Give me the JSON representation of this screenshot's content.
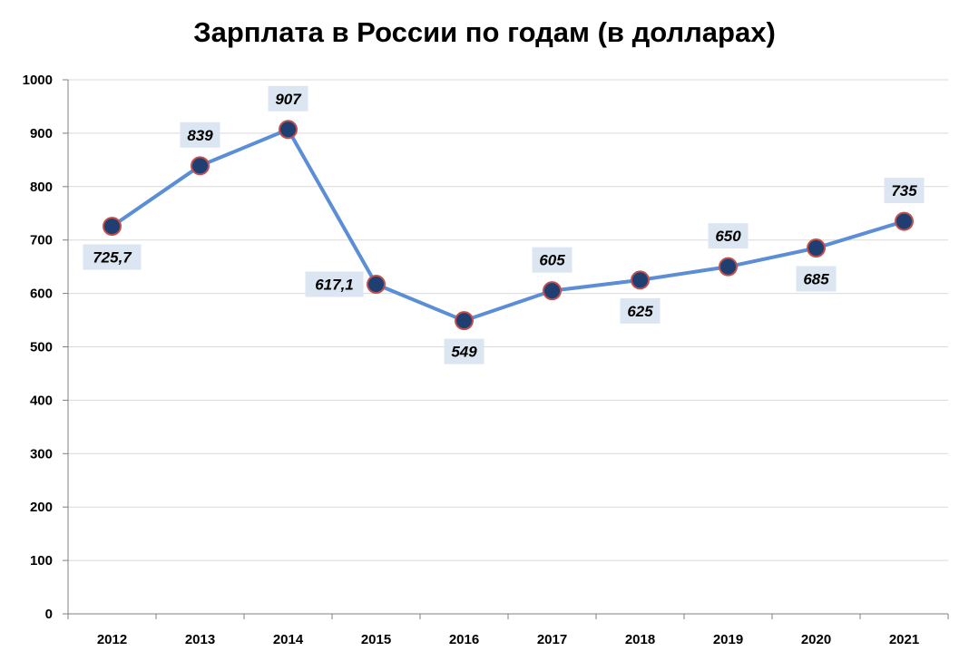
{
  "chart_data": {
    "type": "line",
    "title": "Зарплата в России по годам (в долларах)",
    "xlabel": "",
    "ylabel": "",
    "categories": [
      "2012",
      "2013",
      "2014",
      "2015",
      "2016",
      "2017",
      "2018",
      "2019",
      "2020",
      "2021"
    ],
    "series": [
      {
        "values": [
          725.7,
          839,
          907,
          617.1,
          549,
          605,
          625,
          650,
          685,
          735
        ],
        "data_labels": [
          "725,7",
          "839",
          "907",
          "617,1",
          "549",
          "605",
          "625",
          "650",
          "685",
          "735"
        ],
        "label_positions": [
          "below",
          "above",
          "above",
          "left",
          "below",
          "above",
          "below",
          "above",
          "below",
          "above"
        ]
      }
    ],
    "ylim": [
      0,
      1000
    ],
    "yticks": [
      0,
      100,
      200,
      300,
      400,
      500,
      600,
      700,
      800,
      900,
      1000
    ],
    "grid": true,
    "legend": "none",
    "colors": {
      "line": "#5B8ED6",
      "marker_fill": "#1F3F73",
      "marker_edge": "#C0504D",
      "label_bg": "#DCE6F2",
      "grid": "#D9D9D9",
      "axis": "#808080"
    }
  }
}
